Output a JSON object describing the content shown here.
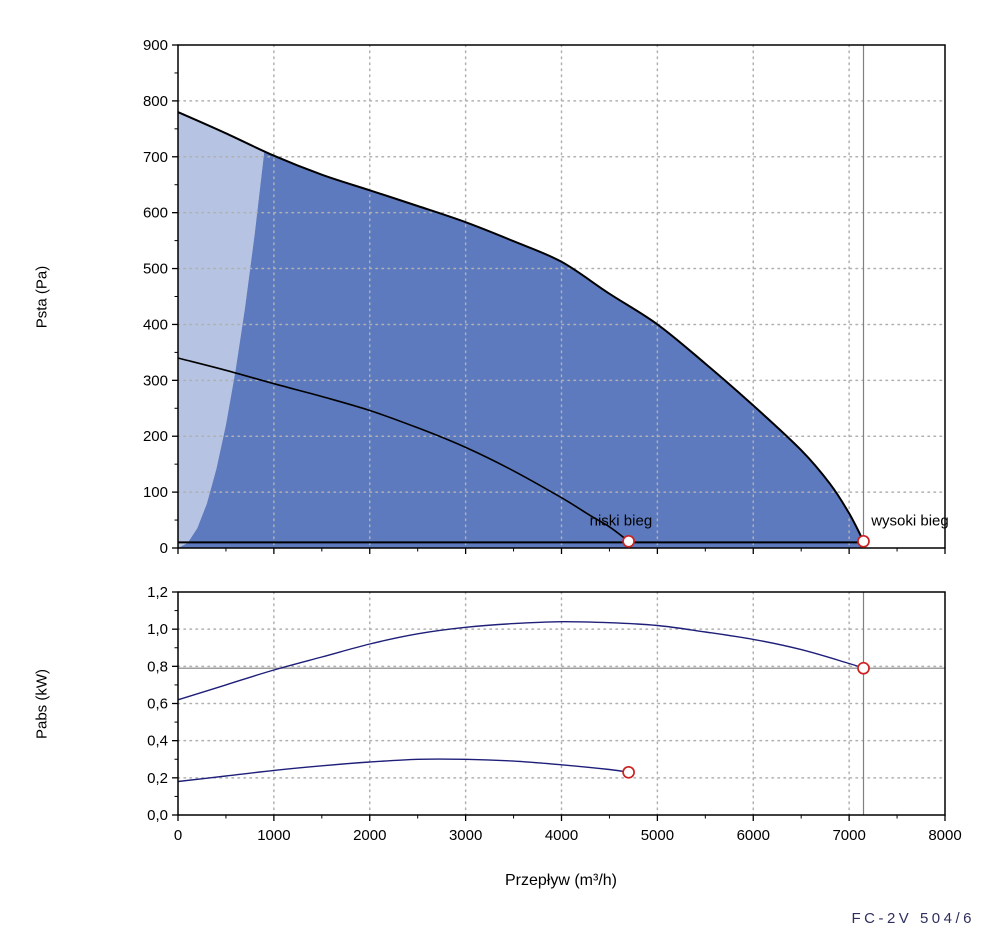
{
  "labels": {
    "xlabel": "Przepływ (m³/h)",
    "model": "FC-2V 504/6"
  },
  "colors": {
    "area_high_speed": "#5d7abe",
    "area_low_speed": "#b6c3e2",
    "pressure_curve": "#000000",
    "power_curve": "#1f1f7a",
    "marker_stroke": "#cc2222",
    "grid": "#b0b0b0",
    "ref_line": "#808080"
  },
  "chart_data": [
    {
      "id": "pressure-chart",
      "type": "area",
      "title": "",
      "xlabel": "",
      "ylabel": "Psta (Pa)",
      "xlim": [
        0,
        8000
      ],
      "ylim": [
        0,
        900
      ],
      "x_ticks": [
        0,
        1000,
        2000,
        3000,
        4000,
        5000,
        6000,
        7000,
        8000
      ],
      "x_minor_step": 500,
      "y_ticks": [
        0,
        100,
        200,
        300,
        400,
        500,
        600,
        700,
        800,
        900
      ],
      "y_tick_labels": [
        "0",
        "100",
        "200",
        "300",
        "400",
        "500",
        "600",
        "700",
        "800",
        "900"
      ],
      "y_minor_step": 50,
      "show_x_tick_labels": false,
      "grid": true,
      "areas": [
        {
          "name": "operating-area-low-speed",
          "color": "#b6c3e2",
          "points": [
            [
              0,
              0
            ],
            [
              0,
              780
            ],
            [
              450,
              745
            ],
            [
              900,
              710
            ],
            [
              800,
              562
            ],
            [
              700,
              431
            ],
            [
              600,
              317
            ],
            [
              500,
              220
            ],
            [
              400,
              141
            ],
            [
              300,
              79
            ],
            [
              200,
              35
            ],
            [
              100,
              9
            ]
          ]
        },
        {
          "name": "operating-area-high-speed",
          "color": "#5d7abe",
          "points": [
            [
              0,
              0
            ],
            [
              100,
              9
            ],
            [
              200,
              35
            ],
            [
              300,
              79
            ],
            [
              400,
              141
            ],
            [
              500,
              220
            ],
            [
              600,
              317
            ],
            [
              700,
              431
            ],
            [
              800,
              562
            ],
            [
              900,
              710
            ],
            [
              1000,
              702
            ],
            [
              1500,
              668
            ],
            [
              2000,
              640
            ],
            [
              2500,
              612
            ],
            [
              3000,
              583
            ],
            [
              3500,
              549
            ],
            [
              4000,
              512
            ],
            [
              4500,
              455
            ],
            [
              5000,
              400
            ],
            [
              5500,
              330
            ],
            [
              6000,
              255
            ],
            [
              6500,
              175
            ],
            [
              6800,
              115
            ],
            [
              7000,
              62
            ],
            [
              7150,
              12
            ],
            [
              7150,
              0
            ]
          ]
        }
      ],
      "series": [
        {
          "name": "wysoki bieg",
          "color": "#000000",
          "width": 2,
          "points": [
            [
              0,
              780
            ],
            [
              500,
              742
            ],
            [
              1000,
              702
            ],
            [
              1500,
              668
            ],
            [
              2000,
              640
            ],
            [
              2500,
              612
            ],
            [
              3000,
              583
            ],
            [
              3500,
              549
            ],
            [
              4000,
              512
            ],
            [
              4500,
              455
            ],
            [
              5000,
              400
            ],
            [
              5500,
              330
            ],
            [
              6000,
              255
            ],
            [
              6500,
              175
            ],
            [
              6800,
              115
            ],
            [
              7000,
              62
            ],
            [
              7150,
              12
            ]
          ]
        },
        {
          "name": "niski bieg",
          "color": "#000000",
          "width": 1.6,
          "points": [
            [
              0,
              340
            ],
            [
              500,
              318
            ],
            [
              1000,
              294
            ],
            [
              1500,
              271
            ],
            [
              2000,
              246
            ],
            [
              2500,
              215
            ],
            [
              3000,
              180
            ],
            [
              3500,
              138
            ],
            [
              4000,
              90
            ],
            [
              4300,
              58
            ],
            [
              4500,
              38
            ],
            [
              4700,
              12
            ]
          ]
        },
        {
          "name": "min-pressure-boundary",
          "color": "#000000",
          "width": 2,
          "points": [
            [
              0,
              10
            ],
            [
              7150,
              10
            ]
          ]
        }
      ],
      "markers": [
        {
          "x": 4700,
          "y": 12
        },
        {
          "x": 7150,
          "y": 12
        }
      ],
      "ref_lines": [
        {
          "type": "v",
          "x": 7150
        }
      ],
      "annotations": [
        {
          "text": "niski bieg",
          "x": 4620,
          "y": 40,
          "anchor": "middle"
        },
        {
          "text": "wysoki bieg",
          "x": 7230,
          "y": 40,
          "anchor": "start"
        }
      ]
    },
    {
      "id": "power-chart",
      "type": "line",
      "title": "",
      "xlabel": "Przepływ (m³/h)",
      "ylabel": "Pabs (kW)",
      "xlim": [
        0,
        8000
      ],
      "ylim": [
        0,
        1.2
      ],
      "x_ticks": [
        0,
        1000,
        2000,
        3000,
        4000,
        5000,
        6000,
        7000,
        8000
      ],
      "x_tick_labels": [
        "0",
        "1000",
        "2000",
        "3000",
        "4000",
        "5000",
        "6000",
        "7000",
        "8000"
      ],
      "x_minor_step": 500,
      "y_ticks": [
        0,
        0.2,
        0.4,
        0.6,
        0.8,
        1.0,
        1.2
      ],
      "y_tick_labels": [
        "0,0",
        "0,2",
        "0,4",
        "0,6",
        "0,8",
        "1,0",
        "1,2"
      ],
      "y_minor_step": 0.1,
      "show_x_tick_labels": true,
      "grid": true,
      "areas": [],
      "series": [
        {
          "name": "wysoki bieg moc",
          "color": "#1f1f7a",
          "width": 1.4,
          "points": [
            [
              0,
              0.62
            ],
            [
              500,
              0.7
            ],
            [
              1000,
              0.78
            ],
            [
              1500,
              0.85
            ],
            [
              2000,
              0.92
            ],
            [
              2500,
              0.975
            ],
            [
              3000,
              1.01
            ],
            [
              3500,
              1.03
            ],
            [
              4000,
              1.04
            ],
            [
              4500,
              1.035
            ],
            [
              5000,
              1.02
            ],
            [
              5500,
              0.985
            ],
            [
              6000,
              0.945
            ],
            [
              6500,
              0.89
            ],
            [
              7000,
              0.815
            ],
            [
              7150,
              0.79
            ]
          ]
        },
        {
          "name": "niski bieg moc",
          "color": "#1f1f7a",
          "width": 1.4,
          "points": [
            [
              0,
              0.18
            ],
            [
              500,
              0.21
            ],
            [
              1000,
              0.24
            ],
            [
              1500,
              0.265
            ],
            [
              2000,
              0.285
            ],
            [
              2500,
              0.3
            ],
            [
              3000,
              0.3
            ],
            [
              3500,
              0.29
            ],
            [
              4000,
              0.27
            ],
            [
              4500,
              0.245
            ],
            [
              4700,
              0.23
            ]
          ]
        }
      ],
      "markers": [
        {
          "x": 7150,
          "y": 0.79
        },
        {
          "x": 4700,
          "y": 0.23
        }
      ],
      "ref_lines": [
        {
          "type": "h",
          "y": 0.79
        },
        {
          "type": "v",
          "x": 7150
        }
      ],
      "annotations": []
    }
  ]
}
